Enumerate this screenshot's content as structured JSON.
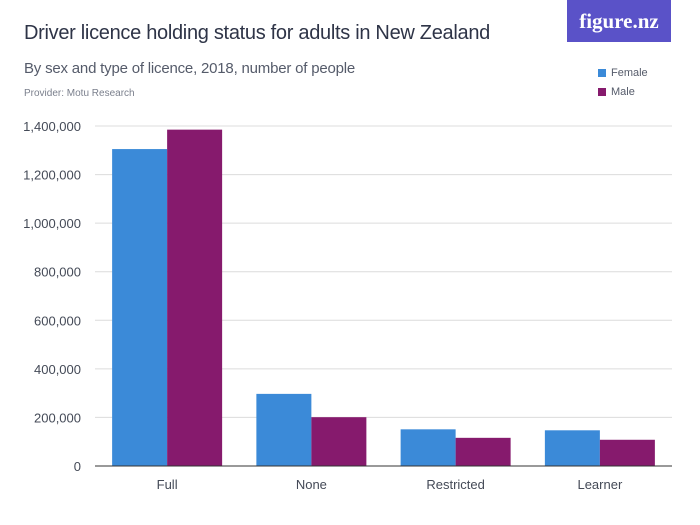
{
  "title": "Driver licence holding status for adults in New Zealand",
  "subtitle": "By sex and type of licence, 2018, number of people",
  "provider": "Provider: Motu Research",
  "logo": "figure.nz",
  "colors": {
    "female": "#3b8ad8",
    "male": "#861a6d",
    "grid": "#dcdcdc",
    "axis": "#333333",
    "logo_bg": "#5a52c8"
  },
  "chart_data": {
    "type": "bar",
    "categories": [
      "Full",
      "None",
      "Restricted",
      "Learner"
    ],
    "series": [
      {
        "name": "Female",
        "values": [
          1305000,
          297000,
          151000,
          147000
        ]
      },
      {
        "name": "Male",
        "values": [
          1385000,
          201000,
          116000,
          108000
        ]
      }
    ],
    "ylim": [
      0,
      1400000
    ],
    "y_ticks": [
      0,
      200000,
      400000,
      600000,
      800000,
      1000000,
      1200000,
      1400000
    ],
    "y_tick_labels": [
      "0",
      "200,000",
      "400,000",
      "600,000",
      "800,000",
      "1,000,000",
      "1,200,000",
      "1,400,000"
    ],
    "grid": true,
    "legend_position": "top-right"
  }
}
